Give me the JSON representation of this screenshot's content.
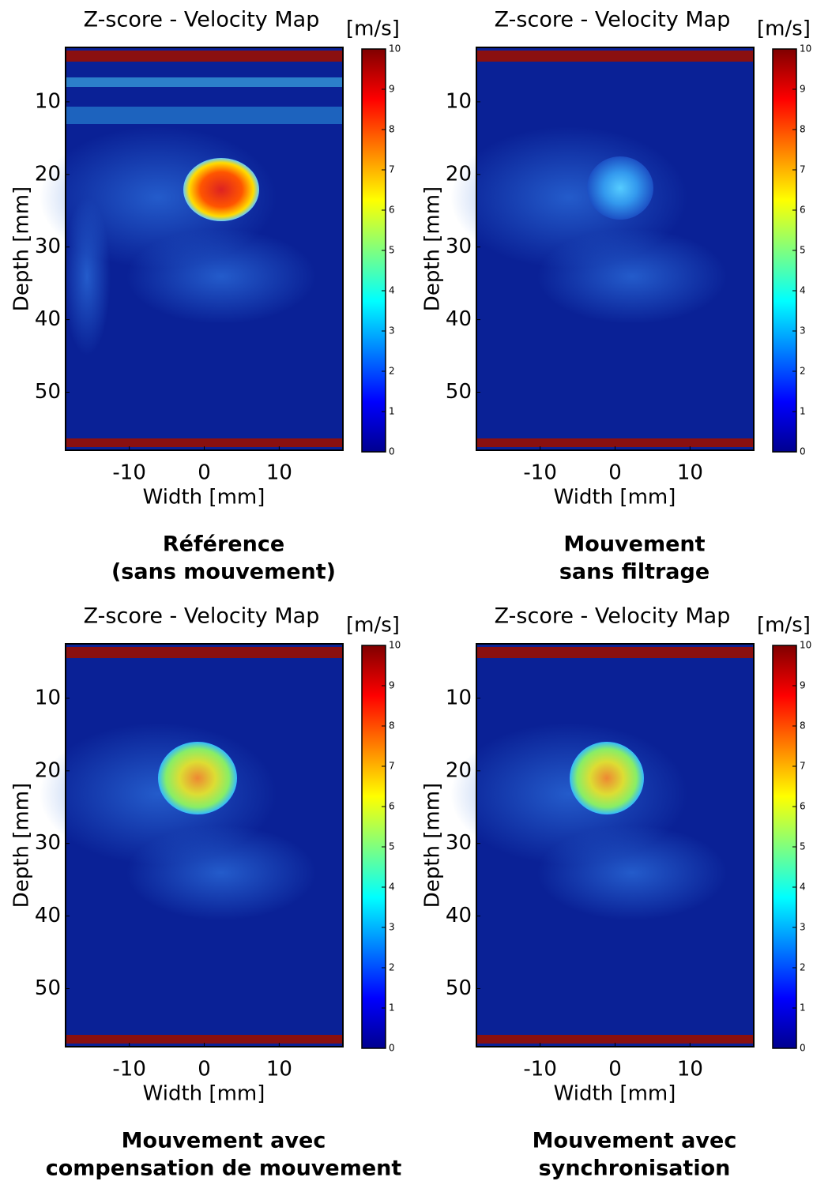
{
  "chart_data": [
    {
      "type": "heatmap",
      "title": "Z-score - Velocity Map",
      "xlabel": "Width [mm]",
      "ylabel": "Depth [mm]",
      "colorbar_label": "[m/s]",
      "xlim": [
        -18.5,
        18.5
      ],
      "ylim": [
        2.5,
        58
      ],
      "xticks": [
        -10,
        0,
        10
      ],
      "yticks": [
        10,
        20,
        30,
        40,
        50
      ],
      "clim": [
        0,
        10
      ],
      "cticks": [
        0,
        1,
        2,
        3,
        4,
        5,
        6,
        7,
        8,
        9,
        10
      ],
      "colormap": "jet",
      "caption": [
        "Référence",
        "(sans mouvement)"
      ]
    },
    {
      "type": "heatmap",
      "title": "Z-score - Velocity Map",
      "xlabel": "Width [mm]",
      "ylabel": "Depth [mm]",
      "colorbar_label": "[m/s]",
      "xlim": [
        -18.5,
        18.5
      ],
      "ylim": [
        2.5,
        58
      ],
      "xticks": [
        -10,
        0,
        10
      ],
      "yticks": [
        10,
        20,
        30,
        40,
        50
      ],
      "clim": [
        0,
        10
      ],
      "cticks": [
        0,
        1,
        2,
        3,
        4,
        5,
        6,
        7,
        8,
        9,
        10
      ],
      "colormap": "jet",
      "caption": [
        "Mouvement",
        "sans filtrage"
      ]
    },
    {
      "type": "heatmap",
      "title": "Z-score - Velocity Map",
      "xlabel": "Width [mm]",
      "ylabel": "Depth [mm]",
      "colorbar_label": "[m/s]",
      "xlim": [
        -18.5,
        18.5
      ],
      "ylim": [
        2.5,
        58
      ],
      "xticks": [
        -10,
        0,
        10
      ],
      "yticks": [
        10,
        20,
        30,
        40,
        50
      ],
      "clim": [
        0,
        10
      ],
      "cticks": [
        0,
        1,
        2,
        3,
        4,
        5,
        6,
        7,
        8,
        9,
        10
      ],
      "colormap": "jet",
      "caption": [
        "Mouvement avec",
        "compensation de mouvement"
      ]
    },
    {
      "type": "heatmap",
      "title": "Z-score - Velocity Map",
      "xlabel": "Width [mm]",
      "ylabel": "Depth [mm]",
      "colorbar_label": "[m/s]",
      "xlim": [
        -18.5,
        18.5
      ],
      "ylim": [
        2.5,
        58
      ],
      "xticks": [
        -10,
        0,
        10
      ],
      "yticks": [
        10,
        20,
        30,
        40,
        50
      ],
      "clim": [
        0,
        10
      ],
      "cticks": [
        0,
        1,
        2,
        3,
        4,
        5,
        6,
        7,
        8,
        9,
        10
      ],
      "colormap": "jet",
      "caption": [
        "Mouvement avec",
        "synchronisation"
      ]
    }
  ]
}
